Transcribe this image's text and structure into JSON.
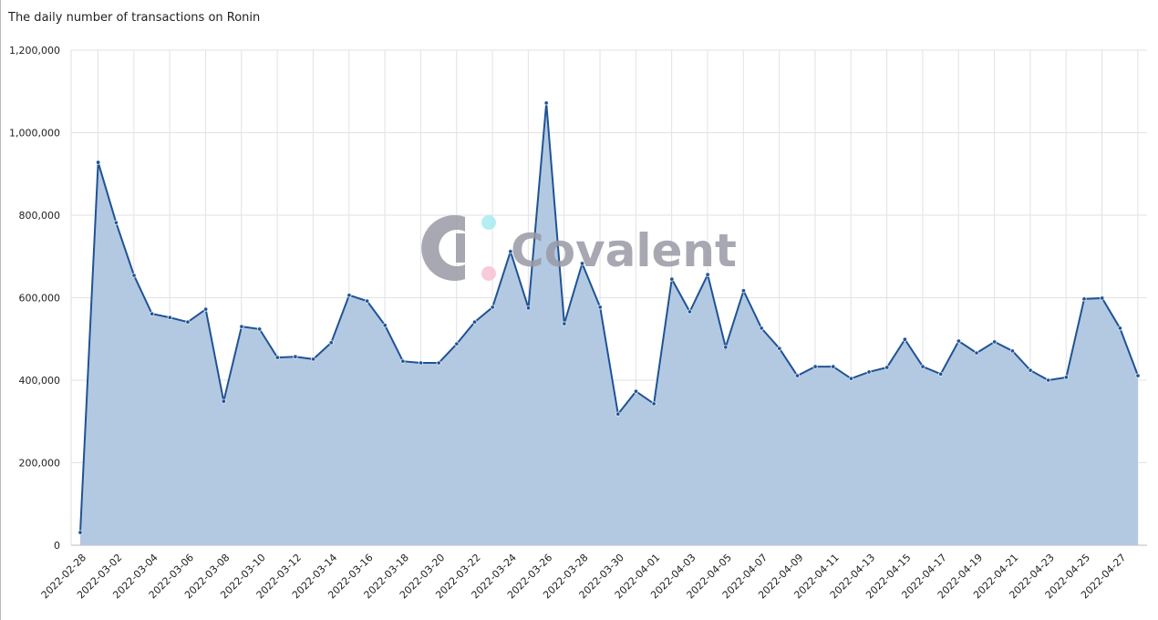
{
  "chart_data": {
    "type": "area",
    "title": "The daily number of transactions on Ronin",
    "watermark": "Covalent",
    "categories": [
      "2022-02-28",
      null,
      "2022-03-02",
      null,
      "2022-03-04",
      null,
      "2022-03-06",
      null,
      "2022-03-08",
      null,
      "2022-03-10",
      null,
      "2022-03-12",
      null,
      "2022-03-14",
      null,
      "2022-03-16",
      null,
      "2022-03-18",
      null,
      "2022-03-20",
      null,
      "2022-03-22",
      null,
      "2022-03-24",
      null,
      "2022-03-26",
      null,
      "2022-03-28",
      null,
      "2022-03-30",
      null,
      "2022-04-01",
      null,
      "2022-04-03",
      null,
      "2022-04-05",
      null,
      "2022-04-07",
      null,
      "2022-04-09",
      null,
      "2022-04-11",
      null,
      "2022-04-13",
      null,
      "2022-04-15",
      null,
      "2022-04-17",
      null,
      "2022-04-19",
      null,
      "2022-04-21",
      null,
      "2022-04-23",
      null,
      "2022-04-25",
      null,
      "2022-04-27",
      null
    ],
    "series": [
      {
        "name": "Transactions",
        "color": "#1f5394",
        "fill": "#b3c9e2",
        "values": [
          31000,
          928000,
          782000,
          654000,
          561000,
          552000,
          541000,
          572000,
          349000,
          530000,
          524000,
          455000,
          457000,
          451000,
          491000,
          606000,
          592000,
          533000,
          446000,
          442000,
          442000,
          488000,
          541000,
          577000,
          712000,
          575000,
          1072000,
          537000,
          683000,
          577000,
          318000,
          373000,
          343000,
          645000,
          566000,
          656000,
          480000,
          617000,
          526000,
          477000,
          411000,
          433000,
          433000,
          404000,
          420000,
          431000,
          499000,
          433000,
          415000,
          495000,
          466000,
          493000,
          471000,
          424000,
          400000,
          407000,
          597000,
          599000,
          526000,
          411000
        ]
      }
    ],
    "ylim": [
      0,
      1200000
    ],
    "yticks": [
      0,
      {
        "value": 200000,
        "label": "200,000"
      },
      {
        "value": 400000,
        "label": "400,000"
      },
      {
        "value": 600000,
        "label": "600,000"
      },
      {
        "value": 800000,
        "label": "800,000"
      },
      {
        "value": 1000000,
        "label": "1,000,000"
      },
      {
        "value": 1200000,
        "label": "1,200,000"
      }
    ],
    "grid": true
  }
}
